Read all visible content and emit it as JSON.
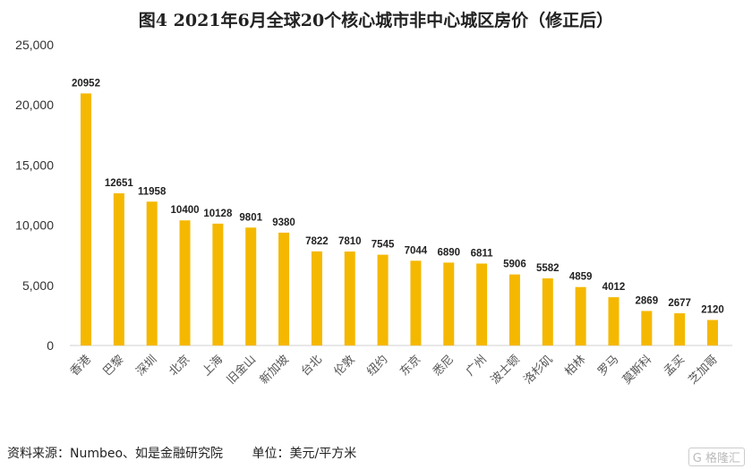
{
  "chart_data": {
    "type": "bar",
    "title": "图4  2021年6月全球20个核心城市非中心城区房价（修正后）",
    "categories": [
      "香港",
      "巴黎",
      "深圳",
      "北京",
      "上海",
      "旧金山",
      "新加坡",
      "台北",
      "伦敦",
      "纽约",
      "东京",
      "悉尼",
      "广州",
      "波士顿",
      "洛杉矶",
      "柏林",
      "罗马",
      "莫斯科",
      "孟买",
      "芝加哥"
    ],
    "values": [
      20952,
      12651,
      11958,
      10400,
      10128,
      9801,
      9380,
      7822,
      7810,
      7545,
      7044,
      6890,
      6811,
      5906,
      5582,
      4859,
      4012,
      2869,
      2677,
      2120
    ],
    "ylim": [
      0,
      25000
    ],
    "yticks": [
      "0",
      "5,000",
      "10,000",
      "15,000",
      "20,000",
      "25,000"
    ],
    "xlabel": "",
    "ylabel": "",
    "bar_color": "#F5B800",
    "grid": false,
    "legend": "none"
  },
  "footer": {
    "source": "资料来源：Numbeo、如是金融研究院",
    "unit": "单位：美元/平方米"
  },
  "watermark": "格隆汇"
}
